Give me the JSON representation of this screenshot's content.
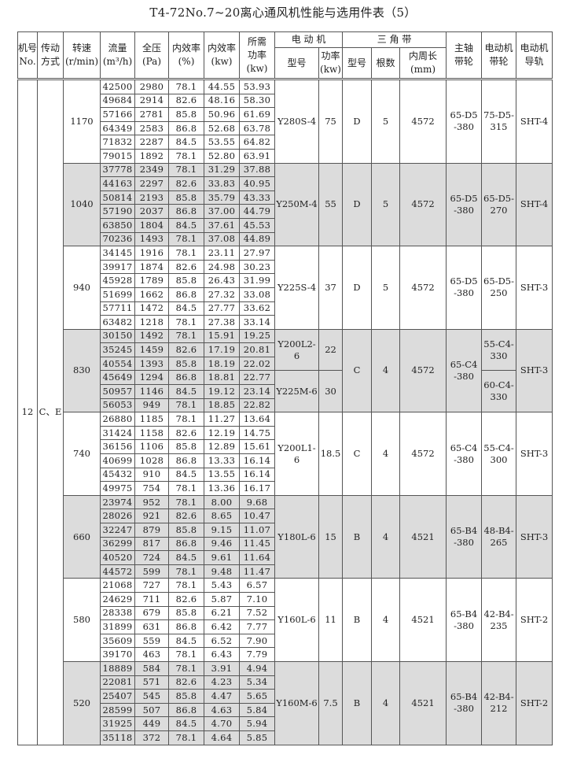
{
  "title": "T4-72No.7~20离心通风机性能与选用件表（5）",
  "header": {
    "machine_no": "机号\nNo.",
    "drive": "传动\n方式",
    "speed": "转速\n(r/min)",
    "flow": "流量\n(m³/h)",
    "pressure": "全压\n(Pa)",
    "eff_pct": "内效率\n(%)",
    "eff_kw": "内效率\n(kw)",
    "required_power": "所需\n功率\n(kw)",
    "motor": "电  动  机",
    "motor_model": "型号",
    "motor_power": "功率\n(kw)",
    "vbelt": "三    角    带",
    "belt_type": "型号",
    "belt_count": "根数",
    "belt_length": "内周长\n(mm)",
    "main_pulley": "主轴\n带轮",
    "motor_pulley": "电动机\n带轮",
    "motor_rail": "电动机\n导轨"
  },
  "machine_no": "12",
  "drive": "C、E",
  "colors": {
    "shade": "#dcdcdc",
    "border": "#555555"
  },
  "groups": [
    {
      "speed": "1170",
      "shaded": false,
      "rows": [
        [
          "42500",
          "2980",
          "78.1",
          "44.55",
          "53.93"
        ],
        [
          "49684",
          "2914",
          "82.6",
          "48.16",
          "58.30"
        ],
        [
          "57166",
          "2781",
          "85.8",
          "50.96",
          "61.69"
        ],
        [
          "64349",
          "2583",
          "86.8",
          "52.68",
          "63.78"
        ],
        [
          "71832",
          "2287",
          "84.5",
          "53.55",
          "64.82"
        ],
        [
          "79015",
          "1892",
          "78.1",
          "52.80",
          "63.91"
        ]
      ],
      "motors": [
        {
          "model": "Y280S-4",
          "power": "75"
        }
      ],
      "belt_type": "D",
      "belt_count": "5",
      "belt_length": "4572",
      "main_pulley": "65-D5\n-380",
      "motor_pulleys": [
        "75-D5-\n315"
      ],
      "rail": "SHT-4"
    },
    {
      "speed": "1040",
      "shaded": true,
      "rows": [
        [
          "37778",
          "2349",
          "78.1",
          "31.29",
          "37.88"
        ],
        [
          "44163",
          "2297",
          "82.6",
          "33.83",
          "40.95"
        ],
        [
          "50814",
          "2193",
          "85.8",
          "35.79",
          "43.33"
        ],
        [
          "57190",
          "2037",
          "86.8",
          "37.00",
          "44.79"
        ],
        [
          "63850",
          "1804",
          "84.5",
          "37.61",
          "45.53"
        ],
        [
          "70236",
          "1493",
          "78.1",
          "37.08",
          "44.89"
        ]
      ],
      "motors": [
        {
          "model": "Y250M-4",
          "power": "55"
        }
      ],
      "belt_type": "D",
      "belt_count": "5",
      "belt_length": "4572",
      "main_pulley": "65-D5\n-380",
      "motor_pulleys": [
        "65-D5-\n270"
      ],
      "rail": "SHT-4"
    },
    {
      "speed": "940",
      "shaded": false,
      "rows": [
        [
          "34145",
          "1916",
          "78.1",
          "23.11",
          "27.97"
        ],
        [
          "39917",
          "1874",
          "82.6",
          "24.98",
          "30.23"
        ],
        [
          "45928",
          "1789",
          "85.8",
          "26.43",
          "31.99"
        ],
        [
          "51699",
          "1662",
          "86.8",
          "27.32",
          "33.08"
        ],
        [
          "57711",
          "1472",
          "84.5",
          "27.77",
          "33.62"
        ],
        [
          "63482",
          "1218",
          "78.1",
          "27.38",
          "33.14"
        ]
      ],
      "motors": [
        {
          "model": "Y225S-4",
          "power": "37"
        }
      ],
      "belt_type": "D",
      "belt_count": "5",
      "belt_length": "4572",
      "main_pulley": "65-D5\n-380",
      "motor_pulleys": [
        "65-D5-\n250"
      ],
      "rail": "SHT-3"
    },
    {
      "speed": "830",
      "shaded": true,
      "rows": [
        [
          "30150",
          "1492",
          "78.1",
          "15.91",
          "19.25"
        ],
        [
          "35245",
          "1459",
          "82.6",
          "17.19",
          "20.81"
        ],
        [
          "40554",
          "1393",
          "85.8",
          "18.19",
          "22.02"
        ],
        [
          "45649",
          "1294",
          "86.8",
          "18.81",
          "22.77"
        ],
        [
          "50957",
          "1146",
          "84.5",
          "19.12",
          "23.14"
        ],
        [
          "56053",
          "949",
          "78.1",
          "18.85",
          "22.82"
        ]
      ],
      "motors": [
        {
          "model": "Y200L2-6",
          "power": "22"
        },
        {
          "model": "Y225M-6",
          "power": "30"
        }
      ],
      "belt_type": "C",
      "belt_count": "4",
      "belt_length": "4572",
      "main_pulley": "65-C4\n-380",
      "motor_pulleys": [
        "55-C4-\n330",
        "60-C4-\n330"
      ],
      "rail": "SHT-3"
    },
    {
      "speed": "740",
      "shaded": false,
      "rows": [
        [
          "26880",
          "1185",
          "78.1",
          "11.27",
          "13.64"
        ],
        [
          "31424",
          "1158",
          "82.6",
          "12.19",
          "14.75"
        ],
        [
          "36156",
          "1106",
          "85.8",
          "12.89",
          "15.61"
        ],
        [
          "40699",
          "1028",
          "86.8",
          "13.33",
          "16.14"
        ],
        [
          "45432",
          "910",
          "84.5",
          "13.55",
          "16.14"
        ],
        [
          "49975",
          "754",
          "78.1",
          "13.36",
          "16.17"
        ]
      ],
      "motors": [
        {
          "model": "Y200L1-6",
          "power": "18.5"
        }
      ],
      "belt_type": "C",
      "belt_count": "4",
      "belt_length": "4572",
      "main_pulley": "65-C4\n-380",
      "motor_pulleys": [
        "55-C4-\n300"
      ],
      "rail": "SHT-3"
    },
    {
      "speed": "660",
      "shaded": true,
      "rows": [
        [
          "23974",
          "952",
          "78.1",
          "8.00",
          "9.68"
        ],
        [
          "28026",
          "921",
          "82.6",
          "8.65",
          "10.47"
        ],
        [
          "32247",
          "879",
          "85.8",
          "9.15",
          "11.07"
        ],
        [
          "36299",
          "817",
          "86.8",
          "9.46",
          "11.45"
        ],
        [
          "40520",
          "724",
          "84.5",
          "9.61",
          "11.64"
        ],
        [
          "44572",
          "599",
          "78.1",
          "9.48",
          "11.47"
        ]
      ],
      "motors": [
        {
          "model": "Y180L-6",
          "power": "15"
        }
      ],
      "belt_type": "B",
      "belt_count": "4",
      "belt_length": "4521",
      "main_pulley": "65-B4\n-380",
      "motor_pulleys": [
        "48-B4-\n265"
      ],
      "rail": "SHT-3"
    },
    {
      "speed": "580",
      "shaded": false,
      "rows": [
        [
          "21068",
          "727",
          "78.1",
          "5.43",
          "6.57"
        ],
        [
          "24629",
          "711",
          "82.6",
          "5.87",
          "7.10"
        ],
        [
          "28338",
          "679",
          "85.8",
          "6.21",
          "7.52"
        ],
        [
          "31899",
          "631",
          "86.8",
          "6.42",
          "7.77"
        ],
        [
          "35609",
          "559",
          "84.5",
          "6.52",
          "7.90"
        ],
        [
          "39170",
          "463",
          "78.1",
          "6.43",
          "7.79"
        ]
      ],
      "motors": [
        {
          "model": "Y160L-6",
          "power": "11"
        }
      ],
      "belt_type": "B",
      "belt_count": "4",
      "belt_length": "4521",
      "main_pulley": "65-B4\n-380",
      "motor_pulleys": [
        "42-B4-\n235"
      ],
      "rail": "SHT-2"
    },
    {
      "speed": "520",
      "shaded": true,
      "rows": [
        [
          "18889",
          "584",
          "78.1",
          "3.91",
          "4.94"
        ],
        [
          "22081",
          "571",
          "82.6",
          "4.23",
          "5.34"
        ],
        [
          "25407",
          "545",
          "85.8",
          "4.47",
          "5.65"
        ],
        [
          "28599",
          "507",
          "86.8",
          "4.63",
          "5.84"
        ],
        [
          "31925",
          "449",
          "84.5",
          "4.70",
          "5.94"
        ],
        [
          "35118",
          "372",
          "78.1",
          "4.64",
          "5.85"
        ]
      ],
      "motors": [
        {
          "model": "Y160M-6",
          "power": "7.5"
        }
      ],
      "belt_type": "B",
      "belt_count": "4",
      "belt_length": "4521",
      "main_pulley": "65-B4\n-380",
      "motor_pulleys": [
        "42-B4-\n212"
      ],
      "rail": "SHT-2"
    }
  ]
}
